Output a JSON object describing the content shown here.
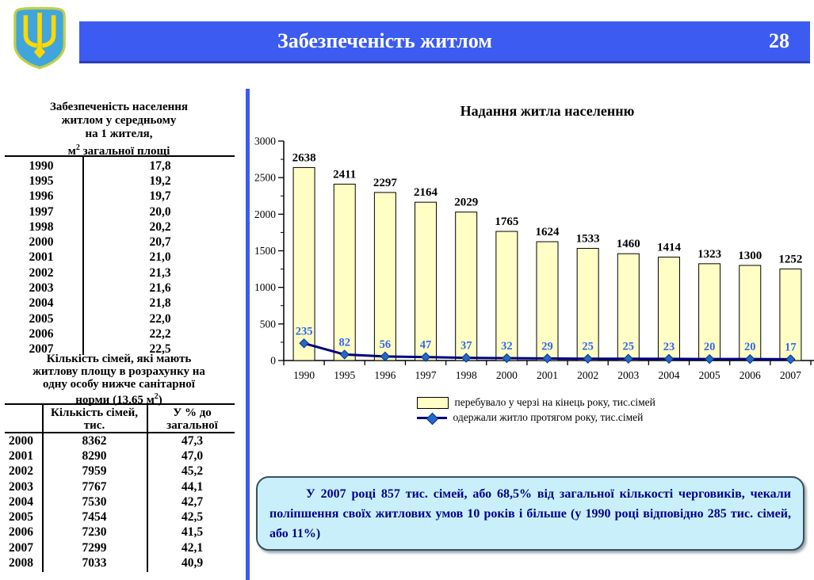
{
  "header": {
    "title": "Забезпеченість житлом",
    "page_number": "28"
  },
  "emblem": {
    "name": "coat-of-arms-of-ukraine"
  },
  "colors": {
    "header_blue": "#3C5BF0",
    "bar_fill": "#FFFFC5",
    "bar_stroke": "#000000",
    "line_navy": "#000080",
    "marker_blue": "#2668C8",
    "marker_edge": "#003380",
    "value_label_blue": "#3366F0",
    "note_bg": "#C9F0FA",
    "note_text": "#00008B"
  },
  "table1": {
    "title_lines": [
      "Забезпеченість населення",
      "житлом у середньому",
      "на 1 жителя,"
    ],
    "title_unit_base": "м",
    "title_unit_sup": "2",
    "title_unit_rest": "  загальної площі",
    "rows": [
      [
        "1990",
        "17,8"
      ],
      [
        "1995",
        "19,2"
      ],
      [
        "1996",
        "19,7"
      ],
      [
        "1997",
        "20,0"
      ],
      [
        "1998",
        "20,2"
      ],
      [
        "2000",
        "20,7"
      ],
      [
        "2001",
        "21,0"
      ],
      [
        "2002",
        "21,3"
      ],
      [
        "2003",
        "21,6"
      ],
      [
        "2004",
        "21,8"
      ],
      [
        "2005",
        "22,0"
      ],
      [
        "2006",
        "22,2"
      ],
      [
        "2007",
        "22,5"
      ]
    ]
  },
  "table2": {
    "title_lines": [
      "Кількість сімей, які мають",
      "житлову площу в розрахунку на",
      "одну особу нижче санітарної"
    ],
    "title_unit_base": "норми (13,65 м",
    "title_unit_sup": "2",
    "title_unit_rest": ")",
    "col2_header": [
      "Кількість сімей,",
      "тис."
    ],
    "col3_header": [
      "У % до",
      "загальної"
    ],
    "rows": [
      [
        "2000",
        "8362",
        "47,3"
      ],
      [
        "2001",
        "8290",
        "47,0"
      ],
      [
        "2002",
        "7959",
        "45,2"
      ],
      [
        "2003",
        "7767",
        "44,1"
      ],
      [
        "2004",
        "7530",
        "42,7"
      ],
      [
        "2005",
        "7454",
        "42,5"
      ],
      [
        "2006",
        "7230",
        "41,5"
      ],
      [
        "2007",
        "7299",
        "42,1"
      ],
      [
        "2008",
        "7033",
        "40,9"
      ]
    ]
  },
  "chart_data": {
    "type": "bar",
    "title": "Надання житла населенню",
    "categories": [
      "1990",
      "1995",
      "1996",
      "1997",
      "1998",
      "2000",
      "2001",
      "2002",
      "2003",
      "2004",
      "2005",
      "2006",
      "2007"
    ],
    "series": [
      {
        "name": "перебувало у черзі на кінець року, тис.сімей",
        "type": "bar",
        "values": [
          2638,
          2411,
          2297,
          2164,
          2029,
          1765,
          1624,
          1533,
          1460,
          1414,
          1323,
          1300,
          1252
        ]
      },
      {
        "name": "одержали житло протягом року, тис.сімей",
        "type": "line",
        "values": [
          235,
          82,
          56,
          47,
          37,
          32,
          29,
          25,
          25,
          23,
          20,
          20,
          17
        ]
      }
    ],
    "ylim": [
      0,
      3000
    ],
    "yticks": [
      0,
      500,
      1000,
      1500,
      2000,
      2500,
      3000
    ],
    "ytick_minor_step": 250,
    "grid": false,
    "legend_position": "bottom"
  },
  "note": {
    "text": "У 2007 році 857 тис. сімей, або 68,5% від загальної кількості черговиків, чекали поліпшення своїх житлових умов 10 років і більше (у 1990 році відповідно 285 тис. сімей, або 11%)"
  }
}
